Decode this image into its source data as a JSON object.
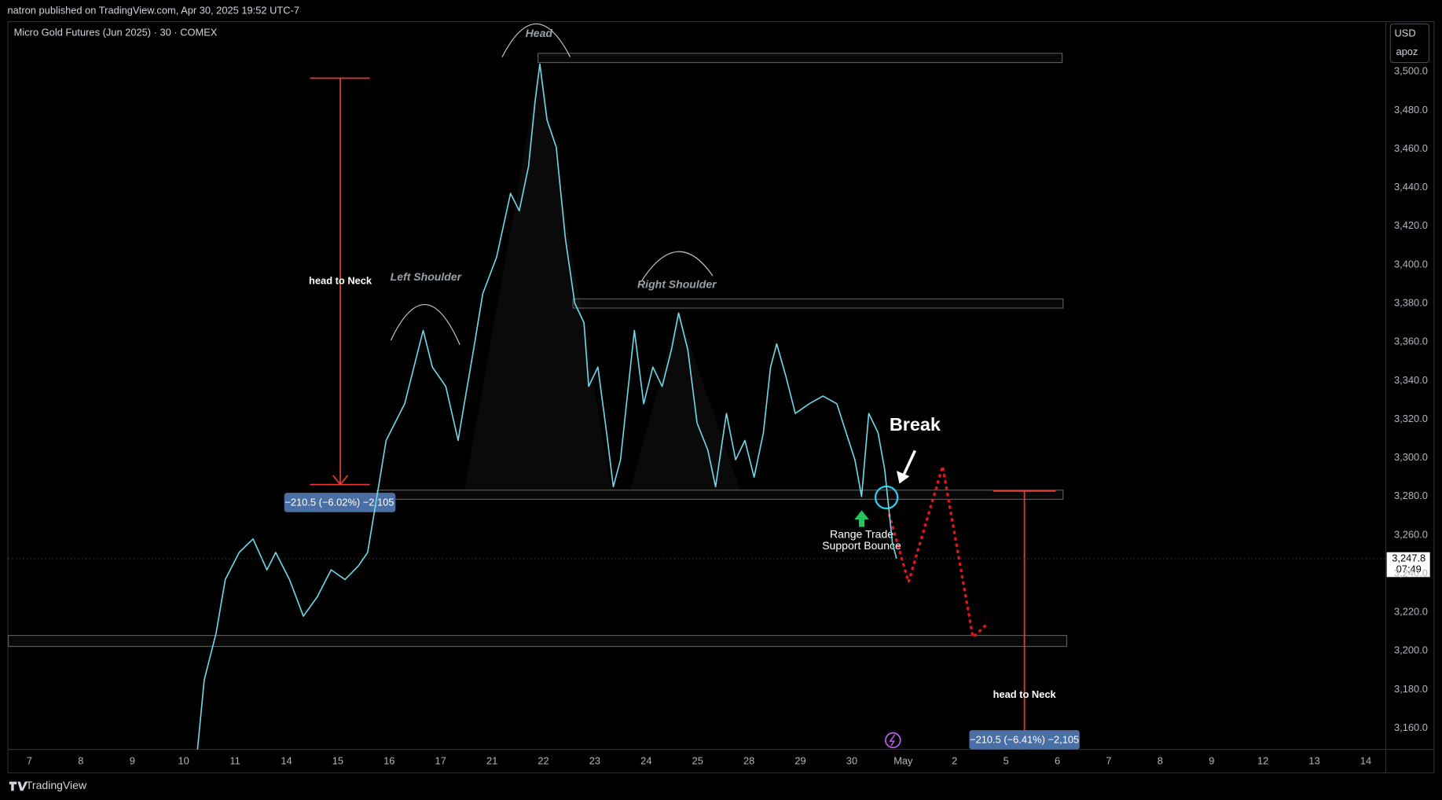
{
  "header": {
    "published": "natron published on TradingView.com, Apr 30, 2025 19:52 UTC-7",
    "symbol": "Micro Gold Futures (Jun 2025) · 30 · COMEX",
    "currency": "USD",
    "user": "apoz",
    "footer": "TradingView"
  },
  "chart_data": {
    "type": "line",
    "xlim": [
      -0.41,
      26.39
    ],
    "ylim": [
      3149,
      3525.7
    ],
    "xticks": [
      {
        "value": 0,
        "label": "7"
      },
      {
        "value": 1,
        "label": "8"
      },
      {
        "value": 2,
        "label": "9"
      },
      {
        "value": 3,
        "label": "10"
      },
      {
        "value": 4,
        "label": "11"
      },
      {
        "value": 5,
        "label": "14"
      },
      {
        "value": 6,
        "label": "15"
      },
      {
        "value": 7,
        "label": "16"
      },
      {
        "value": 8,
        "label": "17"
      },
      {
        "value": 9,
        "label": "21"
      },
      {
        "value": 10,
        "label": "22"
      },
      {
        "value": 11,
        "label": "23"
      },
      {
        "value": 12,
        "label": "24"
      },
      {
        "value": 13,
        "label": "25"
      },
      {
        "value": 14,
        "label": "28"
      },
      {
        "value": 15,
        "label": "29"
      },
      {
        "value": 16,
        "label": "30"
      },
      {
        "value": 17,
        "label": "May"
      },
      {
        "value": 18,
        "label": "2"
      },
      {
        "value": 19,
        "label": "5"
      },
      {
        "value": 20,
        "label": "6"
      },
      {
        "value": 21,
        "label": "7"
      },
      {
        "value": 22,
        "label": "8"
      },
      {
        "value": 23,
        "label": "9"
      },
      {
        "value": 24,
        "label": "12"
      },
      {
        "value": 25,
        "label": "13"
      },
      {
        "value": 26,
        "label": "14"
      }
    ],
    "yticks": [
      {
        "value": 3160,
        "label": "3,160.0"
      },
      {
        "value": 3180,
        "label": "3,180.0"
      },
      {
        "value": 3200,
        "label": "3,200.0"
      },
      {
        "value": 3220,
        "label": "3,220.0"
      },
      {
        "value": 3240,
        "label": "3,240.0"
      },
      {
        "value": 3260,
        "label": "3,260.0"
      },
      {
        "value": 3280,
        "label": "3,280.0"
      },
      {
        "value": 3300,
        "label": "3,300.0"
      },
      {
        "value": 3320,
        "label": "3,320.0"
      },
      {
        "value": 3340,
        "label": "3,340.0"
      },
      {
        "value": 3360,
        "label": "3,360.0"
      },
      {
        "value": 3380,
        "label": "3,380.0"
      },
      {
        "value": 3400,
        "label": "3,400.0"
      },
      {
        "value": 3420,
        "label": "3,420.0"
      },
      {
        "value": 3440,
        "label": "3,440.0"
      },
      {
        "value": 3460,
        "label": "3,460.0"
      },
      {
        "value": 3480,
        "label": "3,480.0"
      },
      {
        "value": 3500,
        "label": "3,500.0"
      }
    ],
    "grid": false,
    "series": [
      {
        "color": "#6fd6e6",
        "x": [
          3.27,
          3.4,
          3.63,
          3.81,
          4.08,
          4.35,
          4.62,
          4.79,
          5.06,
          5.33,
          5.6,
          5.87,
          6.14,
          6.4,
          6.58,
          6.76,
          6.94,
          7.3,
          7.66,
          7.84,
          8.1,
          8.34,
          8.46,
          8.64,
          8.82,
          9.09,
          9.36,
          9.53,
          9.71,
          9.84,
          9.93,
          10.07,
          10.25,
          10.43,
          10.61,
          10.79,
          10.88,
          11.06,
          11.23,
          11.36,
          11.5,
          11.77,
          11.95,
          12.13,
          12.31,
          12.49,
          12.63,
          12.81,
          12.99,
          13.2,
          13.35,
          13.56,
          13.74,
          13.92,
          14.1,
          14.28,
          14.42,
          14.54,
          14.72,
          14.9,
          15.17,
          15.44,
          15.71,
          15.89,
          16.06,
          16.19,
          16.33,
          16.51,
          16.64,
          16.79,
          16.87
        ],
        "values": [
          3149,
          3185,
          3209,
          3237,
          3251,
          3258,
          3242,
          3251,
          3237,
          3218,
          3228,
          3242,
          3237,
          3244,
          3251,
          3280,
          3309,
          3328,
          3366,
          3347,
          3337,
          3309,
          3328,
          3356,
          3385,
          3404,
          3437,
          3428,
          3451,
          3485,
          3504,
          3475,
          3461,
          3413,
          3380,
          3370,
          3337,
          3347,
          3313,
          3285,
          3299,
          3366,
          3328,
          3347,
          3337,
          3356,
          3375,
          3356,
          3318,
          3304,
          3285,
          3323,
          3299,
          3309,
          3290,
          3313,
          3347,
          3359,
          3342,
          3323,
          3328,
          3332,
          3328,
          3313,
          3299,
          3280,
          3323,
          3313,
          3294,
          3256,
          3247.8
        ]
      }
    ],
    "price_badge": "3,247.8",
    "countdown": "07:49",
    "annotations": {
      "head": "Head",
      "left_shoulder": "Left Shoulder",
      "right_shoulder": "Right Shoulder",
      "measure_left": "head to Neck",
      "measure_right": "head to Neck",
      "measure_left_value": "−210.5 (−6.02%) −2,105",
      "measure_right_value": "−210.5 (−6.41%) −2,105",
      "break": "Break",
      "bounce_1": "Range Trade",
      "bounce_2": "Support Bounce"
    }
  }
}
